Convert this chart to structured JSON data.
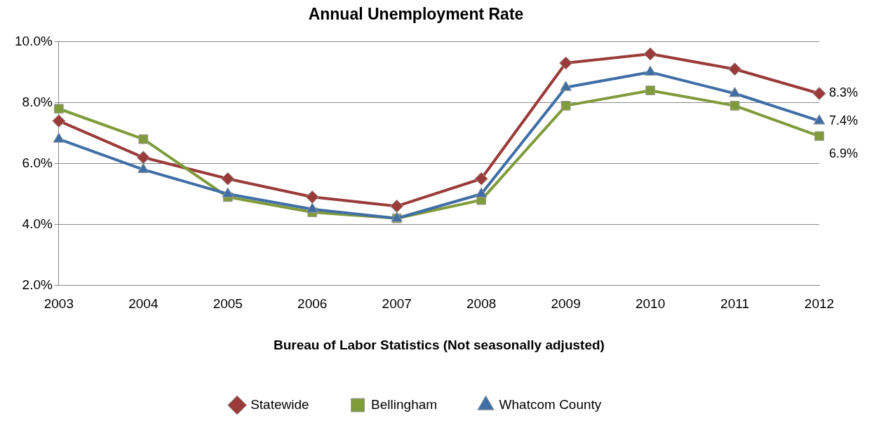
{
  "chart_data": {
    "type": "line",
    "title": "Annual Unemployment Rate",
    "xlabel": "Bureau of Labor Statistics (Not seasonally adjusted)",
    "categories": [
      "2003",
      "2004",
      "2005",
      "2006",
      "2007",
      "2008",
      "2009",
      "2010",
      "2011",
      "2012"
    ],
    "series": [
      {
        "name": "Statewide",
        "color": "#9b3b39",
        "marker": "diamond",
        "values": [
          7.4,
          6.2,
          5.5,
          4.9,
          4.6,
          5.5,
          9.3,
          9.6,
          9.1,
          8.3
        ],
        "value_labels": [
          null,
          null,
          null,
          null,
          null,
          null,
          null,
          null,
          null,
          "8.3%"
        ]
      },
      {
        "name": "Bellingham",
        "color": "#7f9b3a",
        "marker": "square",
        "values": [
          7.8,
          6.8,
          4.9,
          4.4,
          4.2,
          4.8,
          7.9,
          8.4,
          7.9,
          6.9
        ],
        "value_labels": [
          null,
          null,
          null,
          null,
          null,
          null,
          null,
          null,
          null,
          "6.9%"
        ]
      },
      {
        "name": "Whatcom County",
        "color": "#3f6ea6",
        "marker": "triangle",
        "values": [
          6.8,
          5.8,
          5.0,
          4.5,
          4.2,
          5.0,
          8.5,
          9.0,
          8.3,
          7.4
        ],
        "value_labels": [
          null,
          null,
          null,
          null,
          null,
          null,
          null,
          null,
          null,
          "7.4%"
        ]
      }
    ],
    "ylim": [
      2,
      10
    ],
    "yticks": [
      {
        "value": 2,
        "label": "2.0%"
      },
      {
        "value": 4,
        "label": "4.0%"
      },
      {
        "value": 6,
        "label": "6.0%"
      },
      {
        "value": 8,
        "label": "8.0%"
      },
      {
        "value": 10,
        "label": "10.0%"
      }
    ],
    "grid": "y",
    "legend": "bottom",
    "line_style": "solid"
  }
}
